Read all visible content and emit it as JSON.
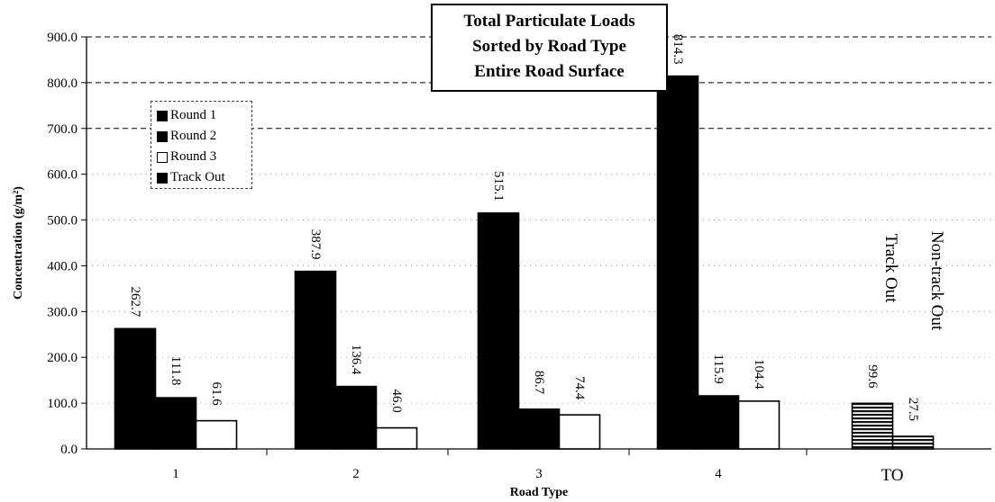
{
  "chart_data": {
    "type": "bar",
    "title_lines": [
      "Total Particulate Loads",
      "Sorted by Road Type",
      "Entire Road Surface"
    ],
    "xlabel": "Road Type",
    "ylabel": "Concentration (g/m²)",
    "ylim": [
      0,
      900
    ],
    "yticks": [
      "0.0",
      "100.0",
      "200.0",
      "300.0",
      "400.0",
      "500.0",
      "600.0",
      "700.0",
      "800.0",
      "900.0"
    ],
    "categories": [
      "1",
      "2",
      "3",
      "4",
      "TO"
    ],
    "grid": true,
    "legend_position": "top-left",
    "series": [
      {
        "name": "Round 1",
        "color": "#000000",
        "values": [
          262.7,
          387.9,
          515.1,
          814.3,
          null
        ],
        "labels": [
          "262.7",
          "387.9",
          "515.1",
          "814.3",
          null
        ]
      },
      {
        "name": "Round 2",
        "color": "#000000",
        "values": [
          111.8,
          136.4,
          86.7,
          115.9,
          null
        ],
        "labels": [
          "111.8",
          "136.4",
          "86.7",
          "115.9",
          null
        ]
      },
      {
        "name": "Round 3",
        "color": "#ffffff",
        "values": [
          61.6,
          46.0,
          74.4,
          104.4,
          null
        ],
        "labels": [
          "61.6",
          "46.0",
          "74.4",
          "104.4",
          null
        ]
      },
      {
        "name": "Track Out",
        "color": "#000000",
        "values": [
          null,
          null,
          null,
          null,
          99.6
        ],
        "labels": [
          null,
          null,
          null,
          null,
          "99.6"
        ]
      }
    ],
    "extra_bars": [
      {
        "category": "TO",
        "value": 27.5,
        "label": "27.5"
      }
    ],
    "annotations": [
      "Track Out",
      "Non-track Out"
    ]
  }
}
